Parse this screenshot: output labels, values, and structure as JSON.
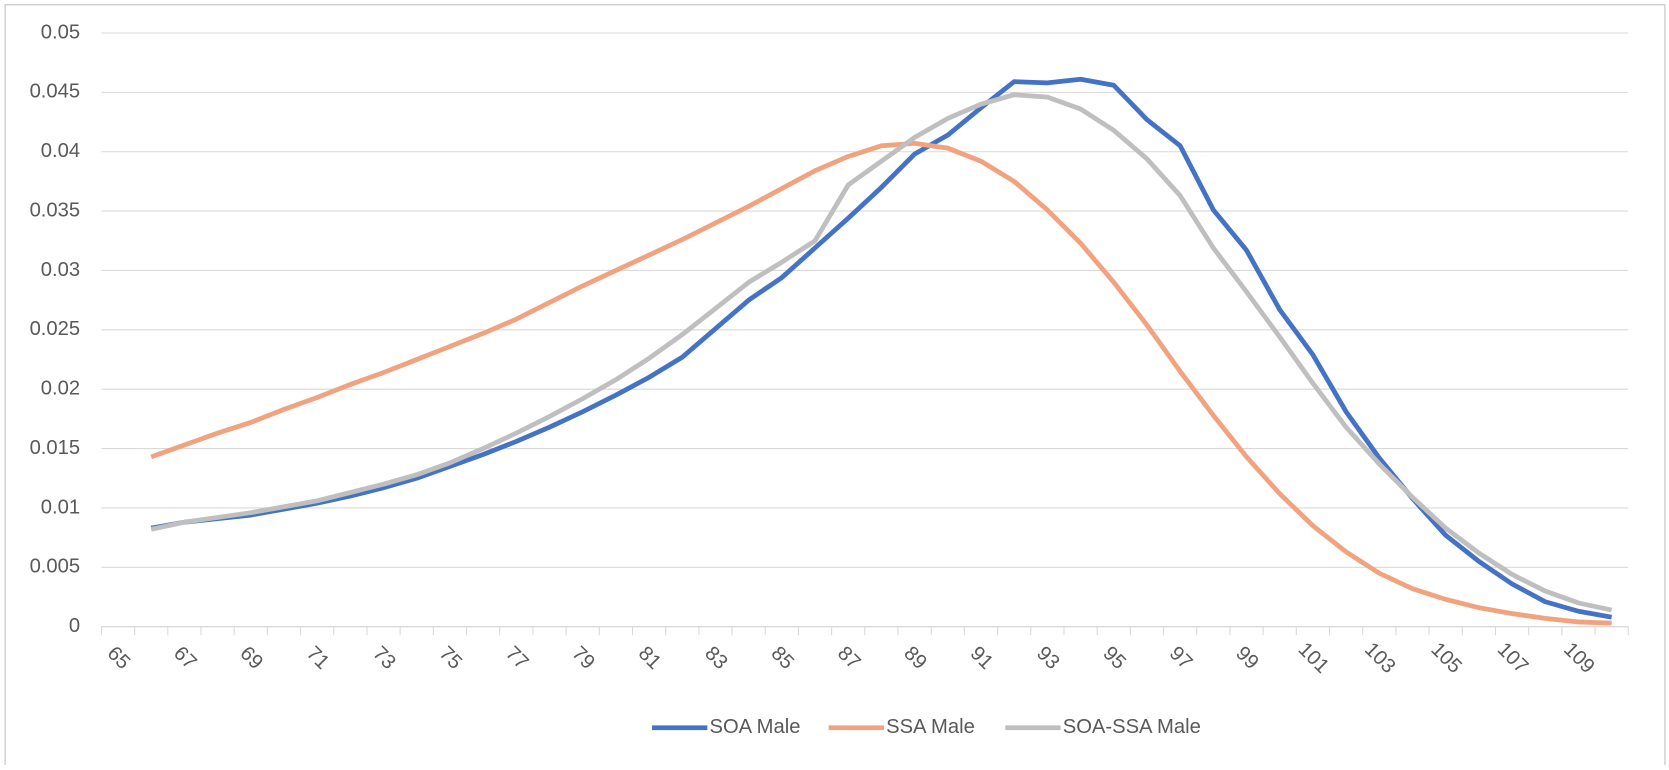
{
  "chart_data": {
    "type": "line",
    "categories": [
      "65",
      null,
      "67",
      null,
      "69",
      null,
      "71",
      null,
      "73",
      null,
      "75",
      null,
      "77",
      null,
      "79",
      null,
      "81",
      null,
      "83",
      null,
      "85",
      null,
      "87",
      null,
      "89",
      null,
      "91",
      null,
      "93",
      null,
      "95",
      null,
      "97",
      null,
      "99",
      null,
      "101",
      null,
      "103",
      null,
      "105",
      null,
      "107",
      null,
      "109",
      null
    ],
    "series": [
      {
        "name": "SOA Male",
        "color": "#4472c4",
        "values": [
          null,
          0.0083,
          0.0088,
          0.0091,
          0.0094,
          0.0099,
          0.0104,
          0.011,
          0.0117,
          0.0125,
          0.0135,
          0.0145,
          0.0156,
          0.0168,
          0.0181,
          0.0195,
          0.021,
          0.0227,
          0.0251,
          0.0275,
          0.0294,
          0.0319,
          0.0344,
          0.037,
          0.0398,
          0.0414,
          0.0437,
          0.0459,
          0.0458,
          0.0461,
          0.0456,
          0.0427,
          0.0405,
          0.0351,
          0.0317,
          0.0267,
          0.0229,
          0.0181,
          0.0142,
          0.0108,
          0.0077,
          0.0055,
          0.0036,
          0.0021,
          0.0013,
          0.0008
        ]
      },
      {
        "name": "SSA Male",
        "color": "#f1a380",
        "values": [
          null,
          0.0143,
          0.0153,
          0.0163,
          0.0172,
          0.0183,
          0.0193,
          0.0204,
          0.0214,
          0.0225,
          0.0236,
          0.0247,
          0.0259,
          0.0273,
          0.0287,
          0.03,
          0.0313,
          0.0326,
          0.034,
          0.0354,
          0.0369,
          0.0384,
          0.0396,
          0.0405,
          0.0407,
          0.0403,
          0.0392,
          0.0375,
          0.0351,
          0.0323,
          0.029,
          0.0254,
          0.0215,
          0.0178,
          0.0143,
          0.0112,
          0.0085,
          0.0063,
          0.0045,
          0.0032,
          0.0023,
          0.0016,
          0.0011,
          0.0007,
          0.0004,
          0.0003
        ]
      },
      {
        "name": "SOA-SSA Male",
        "color": "#bfbfbf",
        "values": [
          null,
          0.0082,
          0.0088,
          0.0092,
          0.0096,
          0.0101,
          0.0106,
          0.0113,
          0.012,
          0.0128,
          0.0138,
          0.015,
          0.0163,
          0.0177,
          0.0192,
          0.0208,
          0.0226,
          0.0246,
          0.0268,
          0.029,
          0.0307,
          0.0325,
          0.0372,
          0.0392,
          0.0412,
          0.0428,
          0.044,
          0.0448,
          0.0446,
          0.0436,
          0.0418,
          0.0394,
          0.0363,
          0.0319,
          0.0282,
          0.0244,
          0.0205,
          0.0168,
          0.0137,
          0.0109,
          0.0083,
          0.0062,
          0.0044,
          0.003,
          0.002,
          0.0014
        ]
      }
    ],
    "ylim": [
      0,
      0.05
    ],
    "yticks": [
      0,
      0.005,
      0.01,
      0.015,
      0.02,
      0.025,
      0.03,
      0.035,
      0.04,
      0.045,
      0.05
    ],
    "grid": true,
    "legend": "bottom"
  }
}
